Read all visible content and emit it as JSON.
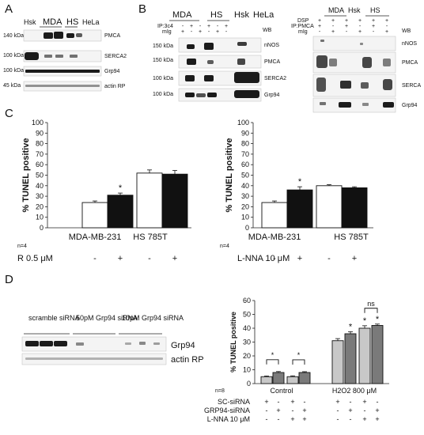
{
  "panels": {
    "a": {
      "letter": "A",
      "lanes": [
        "Hsk",
        "MDA",
        "HS",
        "HeLa"
      ],
      "mw": [
        "140 kDa",
        "100 kDa",
        "100 kDa",
        "45 kDa"
      ],
      "rows": [
        "PMCA",
        "SERCA2",
        "Grp94",
        "actin RP"
      ]
    },
    "b": {
      "letter": "B",
      "left": {
        "lanes": [
          "MDA",
          "HS",
          "Hsk",
          "HeLa"
        ],
        "ip": "IP:3c4",
        "mig": "mIg",
        "ip_signs": [
          "-",
          "+",
          "-",
          "+",
          "-",
          "+"
        ],
        "mig_signs": [
          "+",
          "-",
          "+",
          "-",
          "+",
          "-"
        ],
        "wb": "WB",
        "mw": [
          "150 kDa",
          "150 kDa",
          "100 kDa",
          "100 kDa"
        ],
        "rows": [
          "nNOS",
          "PMCA",
          "SERCA2",
          "Grp94"
        ]
      },
      "right": {
        "lanes": [
          "MDA",
          "Hsk",
          "HS"
        ],
        "dsp": "DSP",
        "ip": "IP:PMCA",
        "mig": "mIg",
        "dsp_signs": [
          "+",
          "+",
          "+",
          "+",
          "+",
          "+"
        ],
        "ip_signs": [
          "+",
          "-",
          "+",
          "-",
          "+",
          "-"
        ],
        "mig_signs": [
          "-",
          "+",
          "-",
          "+",
          "-",
          "+"
        ],
        "wb": "WB",
        "rows": [
          "nNOS",
          "PMCA",
          "SERCA",
          "Grp94"
        ]
      }
    },
    "c": {
      "letter": "C"
    },
    "d": {
      "letter": "D",
      "lanes": [
        "scramble siRNA",
        "50pM Grp94 siRNA",
        "10pM Grp94 siRNA"
      ],
      "rows": [
        "Grp94",
        "actin RP"
      ]
    }
  },
  "chart_data": [
    {
      "type": "bar",
      "ylabel": "% TUNEL positive",
      "ylim": [
        0,
        100
      ],
      "yticks": [
        0,
        10,
        20,
        30,
        40,
        50,
        60,
        70,
        80,
        90,
        100
      ],
      "n_label": "n=4",
      "groups": [
        "MDA-MB-231",
        "HS 785T"
      ],
      "treatment_label": "R 0.5 μM",
      "treatment_signs": [
        "-",
        "+",
        "-",
        "+"
      ],
      "values": [
        24,
        31,
        52,
        51
      ],
      "errors": [
        1.5,
        2,
        3,
        3.5
      ],
      "fills": [
        "#ffffff",
        "#111111",
        "#ffffff",
        "#111111"
      ],
      "stars": [
        "",
        "*",
        "",
        ""
      ]
    },
    {
      "type": "bar",
      "ylabel": "% TUNEL positive",
      "ylim": [
        0,
        100
      ],
      "yticks": [
        0,
        10,
        20,
        30,
        40,
        50,
        60,
        70,
        80,
        90,
        100
      ],
      "n_label": "n=4",
      "groups": [
        "MDA-MB-231",
        "HS 785T"
      ],
      "treatment_label": "L-NNA 10 μM",
      "treatment_signs": [
        "-",
        "+",
        "-",
        "+"
      ],
      "values": [
        24,
        36,
        40,
        38
      ],
      "errors": [
        1.5,
        3,
        1,
        1
      ],
      "fills": [
        "#ffffff",
        "#111111",
        "#ffffff",
        "#111111"
      ],
      "stars": [
        "",
        "*",
        "",
        ""
      ]
    },
    {
      "type": "bar",
      "ylabel": "% TUNEL positive",
      "ylim": [
        0,
        60
      ],
      "yticks": [
        0,
        10,
        20,
        30,
        40,
        50,
        60
      ],
      "n_label": "n=8",
      "groups": [
        "Control",
        "H2O2 800 μM"
      ],
      "values": [
        5,
        8,
        5,
        8,
        31,
        36,
        40,
        42
      ],
      "errors": [
        0.5,
        0.7,
        0.6,
        0.6,
        1.5,
        1.5,
        1.8,
        1
      ],
      "fills": [
        "#c8c8c8",
        "#7a7a7a",
        "#c8c8c8",
        "#7a7a7a",
        "#c8c8c8",
        "#7a7a7a",
        "#c8c8c8",
        "#7a7a7a"
      ],
      "stars": [
        "",
        "",
        "",
        "",
        "",
        "*",
        "*",
        "*"
      ],
      "brackets": [
        {
          "from": 0,
          "to": 1,
          "label": "*"
        },
        {
          "from": 2,
          "to": 3,
          "label": "*"
        },
        {
          "from": 6,
          "to": 7,
          "label": "ns"
        }
      ],
      "condition_rows": [
        {
          "label": "SC-siRNA",
          "signs": [
            "+",
            "-",
            "+",
            "-",
            "+",
            "-",
            "+",
            "-"
          ]
        },
        {
          "label": "GRP94-siRNA",
          "signs": [
            "-",
            "+",
            "-",
            "+",
            "-",
            "+",
            "-",
            "+"
          ]
        },
        {
          "label": "L-NNA 10 μM",
          "signs": [
            "-",
            "-",
            "+",
            "+",
            "-",
            "-",
            "+",
            "+"
          ]
        }
      ]
    }
  ]
}
